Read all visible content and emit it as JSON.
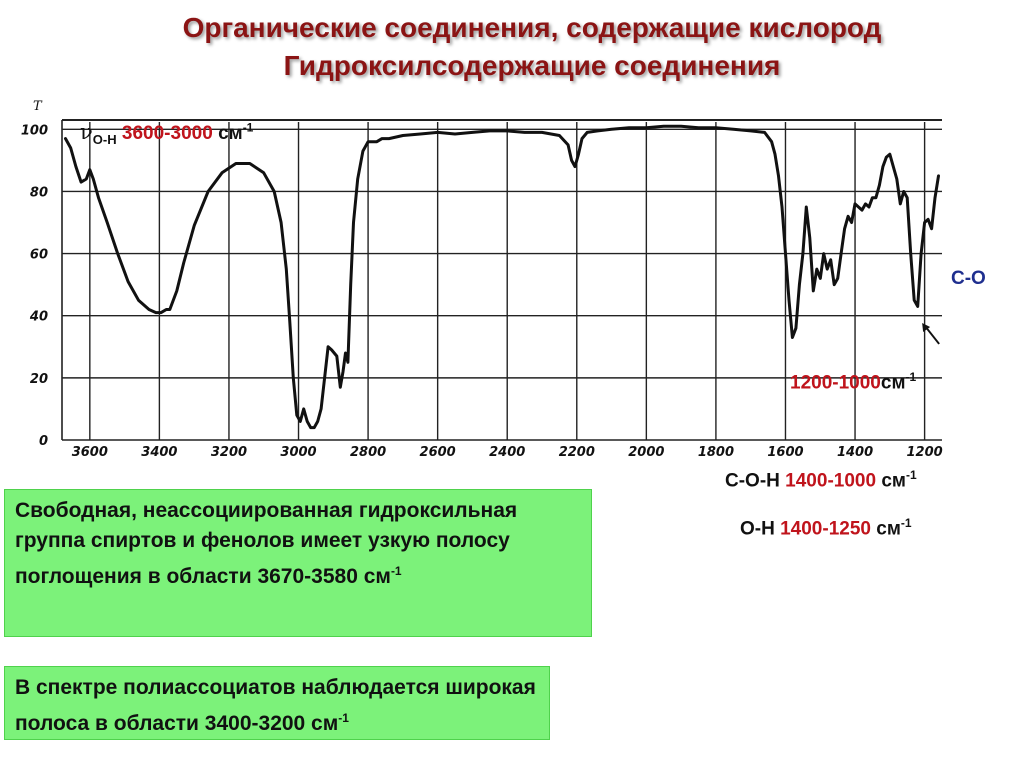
{
  "title_line1": "Органические соединения, содержащие кислород",
  "title_line2": "Гидроксилсодержащие соединения",
  "chart_data": {
    "type": "line",
    "ylabel": "T",
    "x_ticks": [
      "3600",
      "3400",
      "3200",
      "3000",
      "2800",
      "2600",
      "2400",
      "2200",
      "2000",
      "1800",
      "1600",
      "1400",
      "1200"
    ],
    "x_tick_values": [
      3600,
      3400,
      3200,
      3000,
      2800,
      2600,
      2400,
      2200,
      2000,
      1800,
      1600,
      1400,
      1200
    ],
    "y_ticks": [
      "0",
      "20",
      "40",
      "60",
      "80",
      "100"
    ],
    "y_tick_values": [
      0,
      20,
      40,
      60,
      80,
      100
    ],
    "xlim": [
      3680,
      1150
    ],
    "ylim": [
      0,
      103
    ],
    "grid": true,
    "x_reversed": true,
    "series": [
      {
        "color": "#111111",
        "x": [
          3670,
          3655,
          3640,
          3625,
          3610,
          3600,
          3590,
          3575,
          3550,
          3520,
          3490,
          3460,
          3430,
          3410,
          3395,
          3380,
          3370,
          3350,
          3330,
          3300,
          3260,
          3220,
          3180,
          3140,
          3100,
          3070,
          3050,
          3035,
          3025,
          3015,
          3005,
          2995,
          2985,
          2975,
          2965,
          2955,
          2945,
          2935,
          2925,
          2915,
          2905,
          2890,
          2880,
          2872,
          2865,
          2858,
          2850,
          2842,
          2830,
          2815,
          2800,
          2790,
          2775,
          2760,
          2740,
          2700,
          2650,
          2600,
          2550,
          2500,
          2450,
          2400,
          2350,
          2300,
          2250,
          2225,
          2215,
          2205,
          2195,
          2185,
          2170,
          2140,
          2100,
          2050,
          2000,
          1950,
          1900,
          1850,
          1800,
          1750,
          1700,
          1660,
          1640,
          1630,
          1620,
          1610,
          1600,
          1590,
          1580,
          1570,
          1560,
          1550,
          1540,
          1530,
          1520,
          1510,
          1500,
          1490,
          1480,
          1470,
          1460,
          1450,
          1440,
          1430,
          1420,
          1410,
          1400,
          1390,
          1380,
          1370,
          1360,
          1350,
          1340,
          1330,
          1320,
          1310,
          1300,
          1290,
          1280,
          1270,
          1260,
          1250,
          1240,
          1230,
          1220,
          1210,
          1200,
          1190,
          1180,
          1170,
          1160
        ],
        "y": [
          97,
          94,
          88,
          83,
          84,
          87,
          84,
          78,
          70,
          60,
          51,
          45,
          42,
          41,
          41,
          42,
          42,
          48,
          57,
          69,
          80,
          86,
          89,
          89,
          86,
          80,
          70,
          55,
          38,
          20,
          8,
          6,
          10,
          6,
          4,
          4,
          6,
          10,
          20,
          30,
          29,
          27,
          17,
          22,
          28,
          25,
          50,
          70,
          84,
          93,
          96,
          96,
          96,
          97,
          97,
          98,
          98.5,
          99,
          98.5,
          99,
          99.5,
          99.5,
          99,
          99,
          98,
          95,
          90,
          88,
          92,
          97,
          99,
          99.5,
          100,
          100.5,
          100.5,
          101,
          101,
          100.5,
          100.5,
          100,
          99.5,
          99,
          96,
          92,
          85,
          75,
          60,
          45,
          33,
          36,
          50,
          60,
          75,
          65,
          48,
          55,
          52,
          60,
          55,
          58,
          50,
          52,
          60,
          68,
          72,
          70,
          76,
          75,
          74,
          76,
          75,
          78,
          78,
          82,
          88,
          91,
          92,
          88,
          84,
          76,
          80,
          78,
          60,
          45,
          43,
          60,
          70,
          71,
          68,
          78,
          85
        ]
      }
    ]
  },
  "annotations": {
    "nu_oh_symbol": "ν",
    "nu_oh_sub": "O-H",
    "nu_oh_range": "3600-3000",
    "nu_oh_unit": "см",
    "nu_oh_exp": "-1",
    "co_label": "C-O",
    "co_range": "1200-1000",
    "co_unit": "см",
    "co_exp": "-1",
    "coh_label": "C-O-H",
    "coh_range": "1400-1000",
    "coh_unit": "см",
    "coh_exp": "-1",
    "oh_label": "O-H",
    "oh_range": "1400-1250",
    "oh_unit": "см",
    "oh_exp": "-1"
  },
  "box_free": {
    "text": "Свободная, неассоциированная гидроксильная группа спиртов и фенолов имеет узкую полосу поглощения в области 3670-3580 см",
    "exp": "-1"
  },
  "box_assoc": {
    "text": "В спектре полиассоциатов наблюдается широкая полоса в области 3400-3200 см",
    "exp": "-1"
  }
}
